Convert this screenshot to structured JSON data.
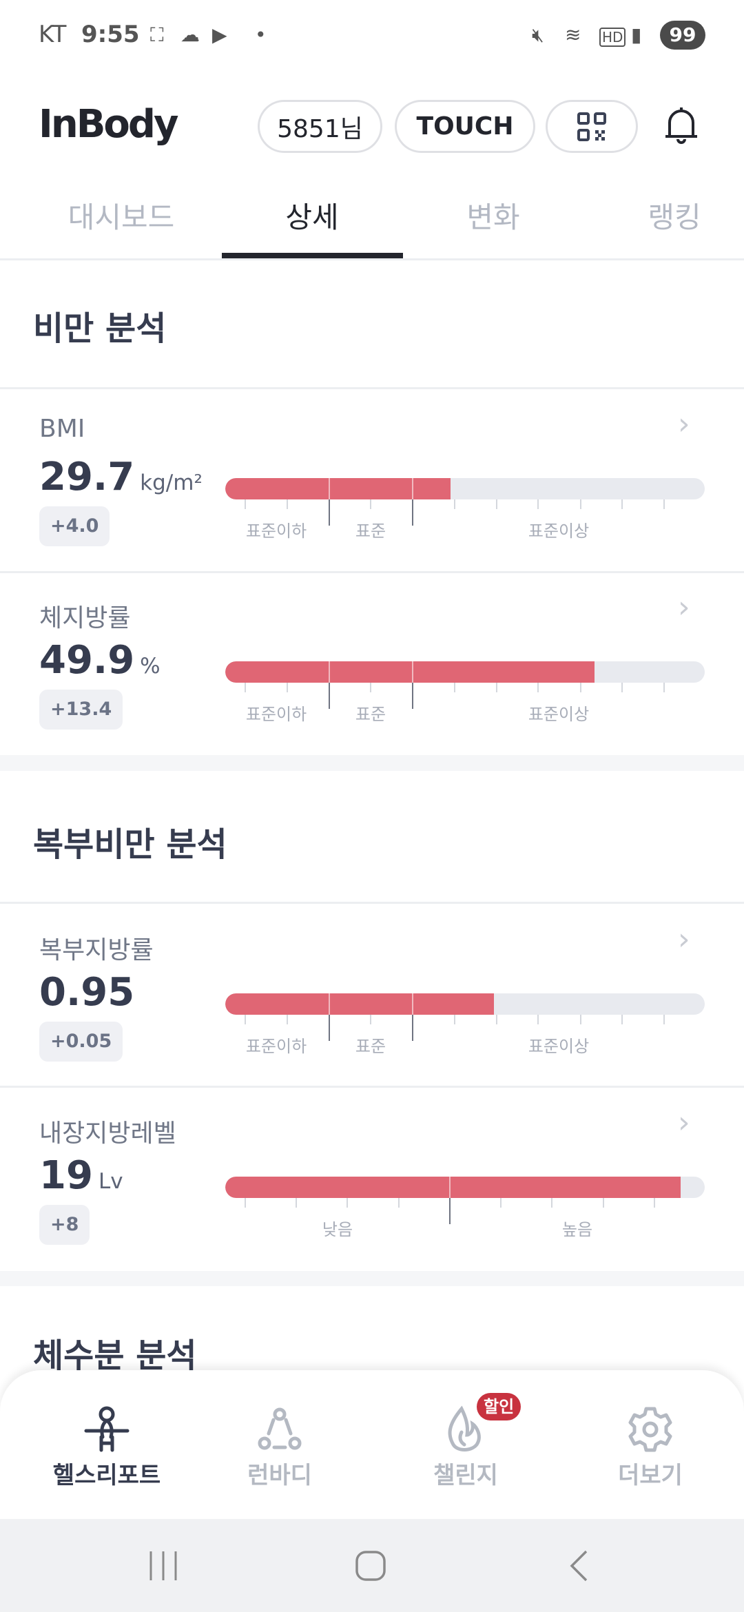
{
  "status_bar": {
    "carrier": "KT",
    "time": "9:55",
    "battery": "99",
    "icons": [
      "screenshot-icon",
      "cloud-icon",
      "youtube-icon",
      "dot-icon",
      "mute-icon",
      "wifi-icon",
      "hd-voice-icon",
      "signal-icon"
    ]
  },
  "header": {
    "logo": "InBody",
    "user_label": "5851님",
    "touch_label": "TOUCH",
    "icons": [
      "qr-code-icon",
      "bell-icon"
    ]
  },
  "tabs": [
    {
      "label": "대시보드",
      "active": false
    },
    {
      "label": "상세",
      "active": true
    },
    {
      "label": "변화",
      "active": false
    },
    {
      "label": "랭킹",
      "active": false
    }
  ],
  "colors": {
    "accent": "#e06674",
    "track": "#e8eaef",
    "text": "#363c4f",
    "active_tab": "#23252d",
    "sale_badge": "#c8323f"
  },
  "sections": [
    {
      "title": "비만 분석",
      "cards": [
        {
          "label": "BMI",
          "value": "29.7",
          "unit": "kg/m²",
          "delta": "+4.0",
          "fill_percent": 47,
          "scale": "standard",
          "range_labels": [
            "표준이하",
            "표준",
            "표준이상"
          ]
        },
        {
          "label": "체지방률",
          "value": "49.9",
          "unit": "%",
          "delta": "+13.4",
          "fill_percent": 77,
          "scale": "standard",
          "range_labels": [
            "표준이하",
            "표준",
            "표준이상"
          ]
        }
      ]
    },
    {
      "title": "복부비만 분석",
      "cards": [
        {
          "label": "복부지방률",
          "value": "0.95",
          "unit": "",
          "delta": "+0.05",
          "fill_percent": 56,
          "scale": "standard",
          "range_labels": [
            "표준이하",
            "표준",
            "표준이상"
          ]
        },
        {
          "label": "내장지방레벨",
          "value": "19",
          "unit": "Lv",
          "delta": "+8",
          "fill_percent": 95,
          "scale": "level",
          "range_labels": [
            "낮음",
            "높음"
          ]
        }
      ]
    },
    {
      "title": "체수분 분석"
    }
  ],
  "bottom_nav": [
    {
      "label": "헬스리포트",
      "icon": "person-icon",
      "active": true
    },
    {
      "label": "런바디",
      "icon": "community-icon",
      "active": false
    },
    {
      "label": "챌린지",
      "icon": "flame-icon",
      "active": false,
      "badge": "할인"
    },
    {
      "label": "더보기",
      "icon": "gear-icon",
      "active": false
    }
  ],
  "system_nav": [
    "recent-apps-icon",
    "home-icon",
    "back-icon"
  ]
}
